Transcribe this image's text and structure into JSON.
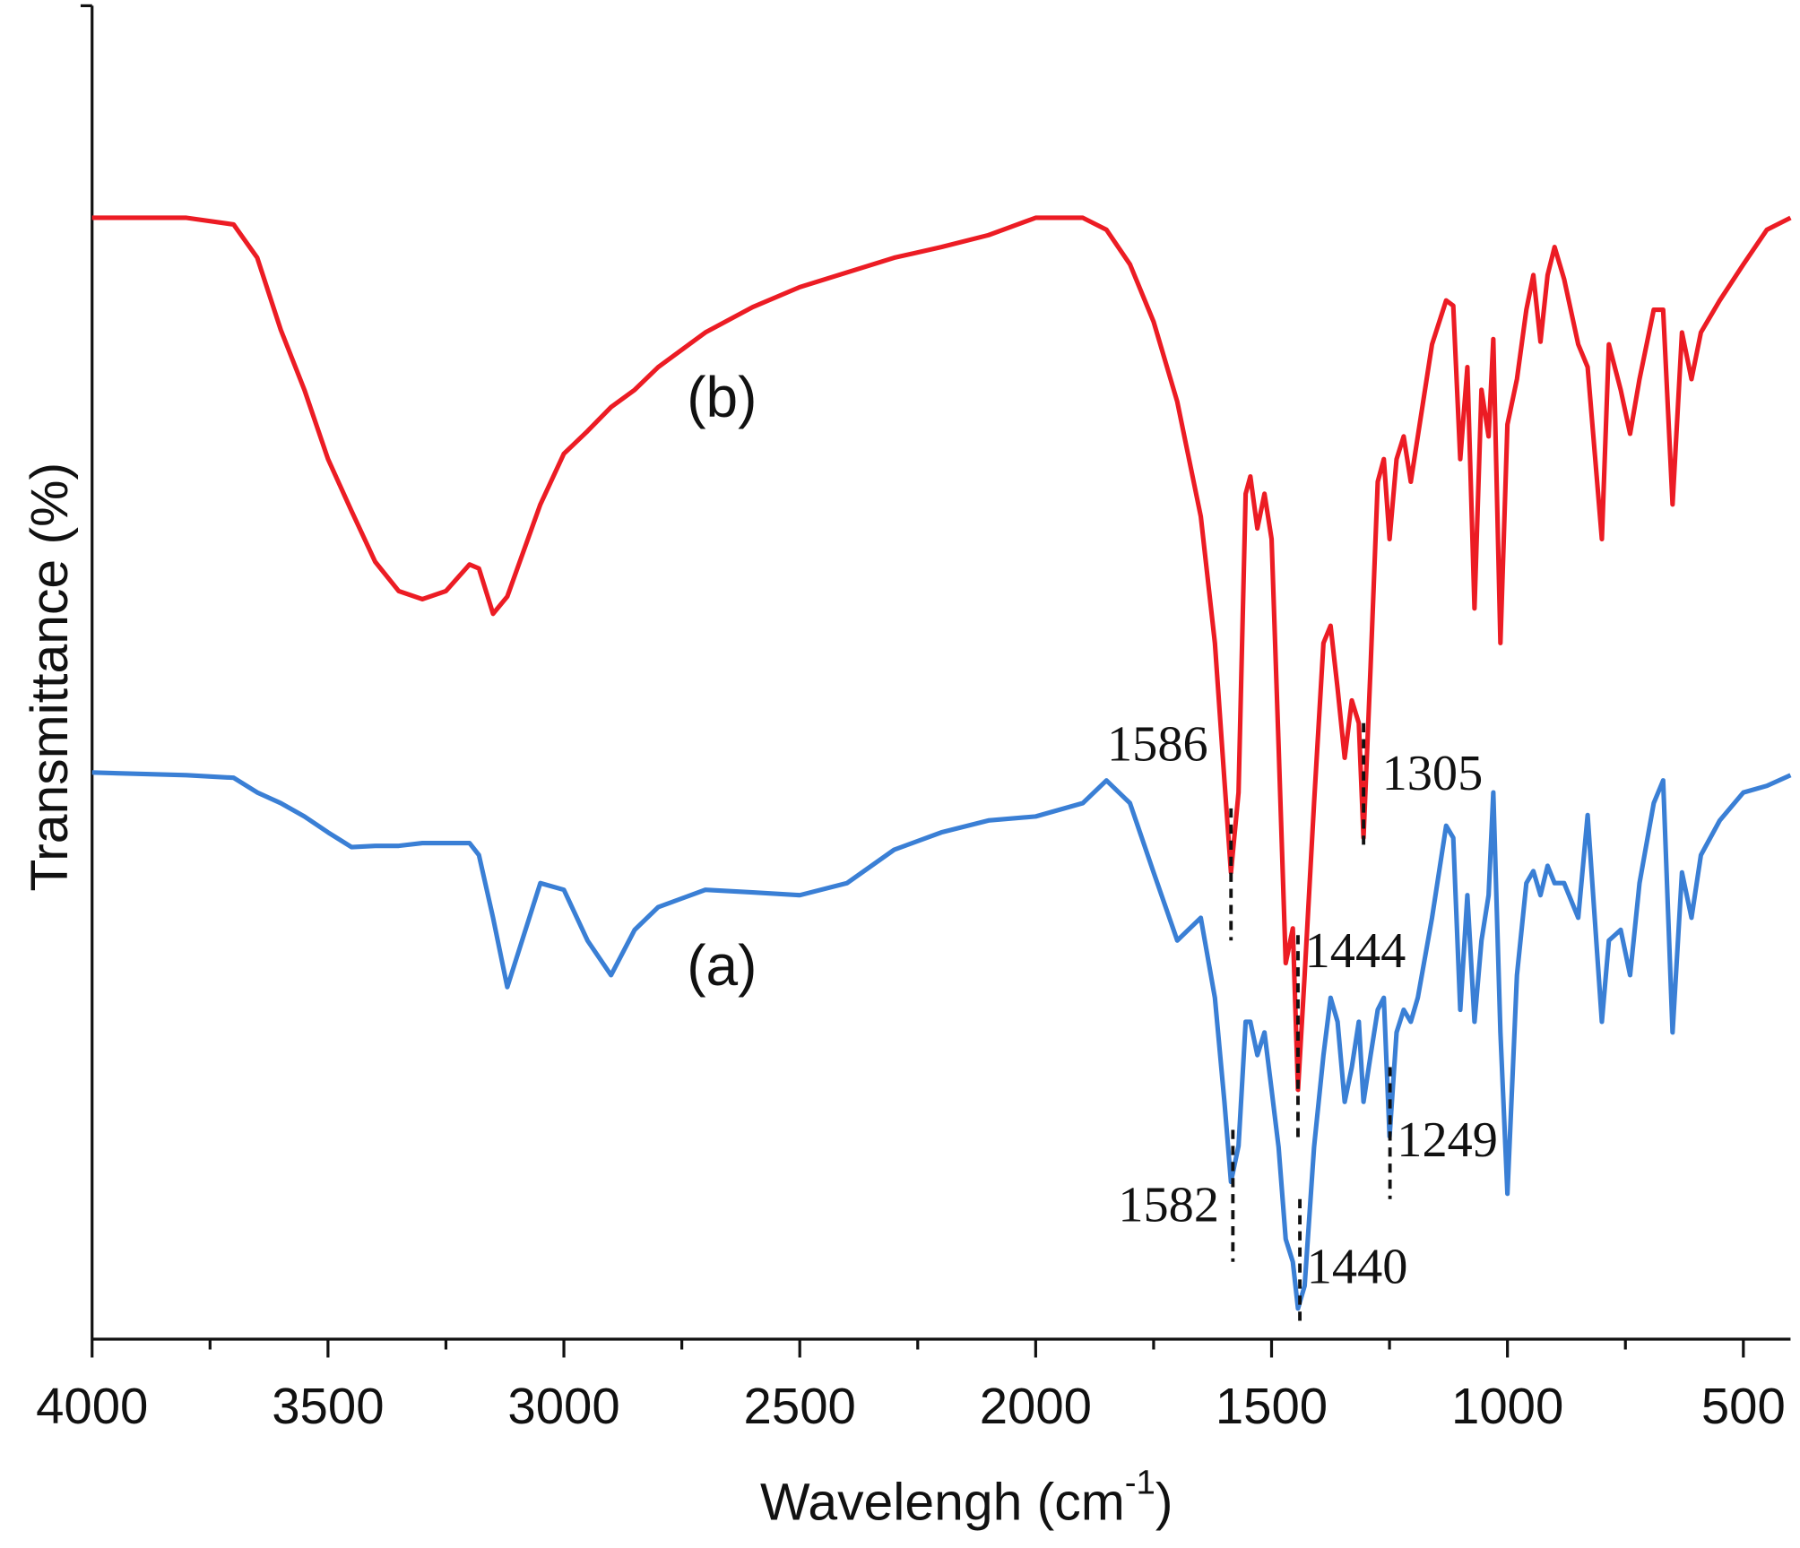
{
  "chart_data": {
    "type": "line",
    "y_label": "Transmittance (%)",
    "x_label": {
      "text": "Wavelengh (cm",
      "superscript": "-1",
      "suffix": ")"
    },
    "xlim": [
      4000,
      400
    ],
    "ylim": [
      0,
      100
    ],
    "xticks": [
      4000,
      3500,
      3000,
      2500,
      2000,
      1500,
      1000,
      500
    ],
    "xminorticks": [
      3750,
      3250,
      2750,
      2250,
      1750,
      1250,
      750
    ],
    "x": [
      4000,
      3800,
      3700,
      3650,
      3600,
      3550,
      3500,
      3450,
      3400,
      3350,
      3300,
      3250,
      3200,
      3180,
      3150,
      3120,
      3050,
      3000,
      2950,
      2900,
      2850,
      2800,
      2700,
      2600,
      2500,
      2400,
      2300,
      2200,
      2100,
      2000,
      1900,
      1850,
      1800,
      1750,
      1700,
      1650,
      1620,
      1600,
      1586,
      1570,
      1555,
      1545,
      1530,
      1515,
      1500,
      1485,
      1470,
      1455,
      1444,
      1430,
      1410,
      1390,
      1375,
      1360,
      1345,
      1330,
      1315,
      1305,
      1290,
      1275,
      1262,
      1250,
      1235,
      1220,
      1205,
      1190,
      1160,
      1130,
      1115,
      1100,
      1085,
      1070,
      1055,
      1040,
      1030,
      1015,
      1000,
      980,
      960,
      945,
      930,
      915,
      900,
      880,
      850,
      830,
      800,
      785,
      760,
      740,
      720,
      690,
      670,
      650,
      630,
      610,
      590,
      550,
      500,
      450,
      400
    ],
    "series": [
      {
        "name": "(b)",
        "color": "#ec1c24",
        "values": [
          84.1,
          84.1,
          83.6,
          81.1,
          75.7,
          71.2,
          66.0,
          62.1,
          58.3,
          56.1,
          55.5,
          56.1,
          58.1,
          57.8,
          54.4,
          55.7,
          62.6,
          66.4,
          68.1,
          69.9,
          71.2,
          72.9,
          75.5,
          77.4,
          78.9,
          80.0,
          81.1,
          81.9,
          82.8,
          84.1,
          84.1,
          83.2,
          80.6,
          76.3,
          70.3,
          61.7,
          52.2,
          41.9,
          35.0,
          41.0,
          63.4,
          64.7,
          60.8,
          63.4,
          60.0,
          44.5,
          28.2,
          30.8,
          18.7,
          27.3,
          40.2,
          52.2,
          53.5,
          48.8,
          43.6,
          47.9,
          46.2,
          37.6,
          50.5,
          64.3,
          66.0,
          60.0,
          66.0,
          67.7,
          64.3,
          67.7,
          74.6,
          77.9,
          77.5,
          66.0,
          72.9,
          54.8,
          71.2,
          67.7,
          75.0,
          52.2,
          68.6,
          72.0,
          77.2,
          79.8,
          74.8,
          79.8,
          81.9,
          79.5,
          74.6,
          72.9,
          60.0,
          74.6,
          71.2,
          67.9,
          72.0,
          77.2,
          77.2,
          62.6,
          75.5,
          72.0,
          75.5,
          77.9,
          80.6,
          83.2,
          84.1
        ]
      },
      {
        "name": "(a)",
        "color": "#3a7fd5",
        "values": [
          42.5,
          42.3,
          42.1,
          41.0,
          40.2,
          39.2,
          38.0,
          36.9,
          37.0,
          37.0,
          37.2,
          37.2,
          37.2,
          36.3,
          31.6,
          26.4,
          34.2,
          33.7,
          29.9,
          27.3,
          30.7,
          32.4,
          33.7,
          33.5,
          33.3,
          34.2,
          36.7,
          38.0,
          38.9,
          39.2,
          40.2,
          41.9,
          40.2,
          35.0,
          29.9,
          31.6,
          25.6,
          17.8,
          11.8,
          14.5,
          23.8,
          23.8,
          21.3,
          23.0,
          18.7,
          14.4,
          7.5,
          5.8,
          2.3,
          4.0,
          14.4,
          21.3,
          25.6,
          23.8,
          17.8,
          20.4,
          23.8,
          17.8,
          21.3,
          24.7,
          25.6,
          15.2,
          23.0,
          24.7,
          23.8,
          25.6,
          31.6,
          38.5,
          37.6,
          24.7,
          33.3,
          23.8,
          29.9,
          33.3,
          41.0,
          23.0,
          10.9,
          27.3,
          34.2,
          35.1,
          33.3,
          35.5,
          34.2,
          34.2,
          31.6,
          39.3,
          23.8,
          29.9,
          30.7,
          27.3,
          34.2,
          40.2,
          41.9,
          23.0,
          35.0,
          31.6,
          36.3,
          38.9,
          41.0,
          41.5,
          42.3
        ]
      }
    ],
    "annotations": [
      {
        "text": "1586",
        "x": 1586,
        "y": [
          39.8,
          29.9
        ]
      },
      {
        "text": "1305",
        "x": 1305,
        "y": [
          46.2,
          36.7
        ]
      },
      {
        "text": "1444",
        "x": 1444,
        "y": [
          30.3,
          14.8
        ]
      },
      {
        "text": "1582",
        "x": 1582,
        "y": [
          15.7,
          5.8
        ]
      },
      {
        "text": "1249",
        "x": 1249,
        "y": [
          20.4,
          10.5
        ]
      },
      {
        "text": "1440",
        "x": 1440,
        "y": [
          10.5,
          1.0
        ]
      }
    ],
    "curve_labels": [
      {
        "text": "(b)",
        "x": 2665,
        "y": 70.3
      },
      {
        "text": "(a)",
        "x": 2665,
        "y": 27.7
      }
    ]
  }
}
